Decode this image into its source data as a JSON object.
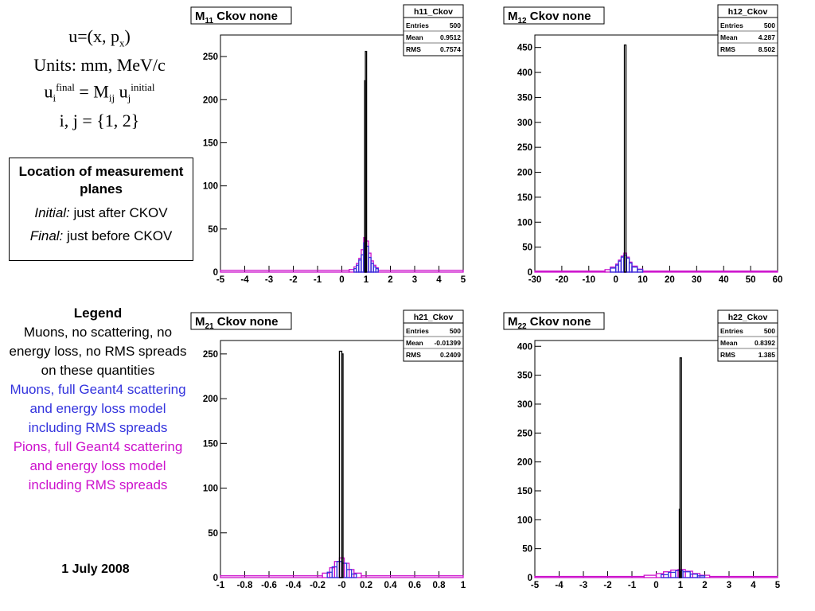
{
  "formula": {
    "line1": "u=(x, p",
    "line1_sub": "x",
    "line1_end": ")",
    "line2": "Units: mm, MeV/c",
    "line3_a": "u",
    "line3_a_sup": "final",
    "line3_a_sub": "i",
    "line3_b": " = M",
    "line3_b_sub": "ij",
    "line3_c": " u",
    "line3_c_sup": "initial",
    "line3_c_sub": "j",
    "line4": "i, j = {1, 2}"
  },
  "location": {
    "title": "Location of measurement planes",
    "initial_label": "Initial:",
    "initial_text": " just after CKOV",
    "final_label": "Final:",
    "final_text": " just before CKOV"
  },
  "legend": {
    "title": "Legend",
    "black": "Muons, no scattering, no energy loss, no RMS spreads on these quantities",
    "blue": "Muons, full Geant4 scattering and energy loss model including RMS spreads",
    "magenta": "Pions, full Geant4 scattering and energy loss model including RMS spreads",
    "colors": {
      "black": "#000000",
      "blue": "#3333dd",
      "magenta": "#cc11cc"
    }
  },
  "date": "1 July 2008",
  "chart_data": [
    {
      "type": "histogram",
      "title_main": "M",
      "title_sub": "11",
      "title_rest": " Ckov none",
      "stats": {
        "name": "h11_Ckov",
        "rows": [
          [
            "Entries",
            "500"
          ],
          [
            "Mean",
            "0.9512"
          ],
          [
            "RMS",
            "0.7574"
          ]
        ]
      },
      "xlim": [
        -5,
        5
      ],
      "ylim": [
        0,
        275
      ],
      "xticks": [
        -5,
        -4,
        -3,
        -2,
        -1,
        0,
        1,
        2,
        3,
        4,
        5
      ],
      "yticks": [
        0,
        50,
        100,
        150,
        200,
        250
      ],
      "series": [
        {
          "color": "#000000",
          "bins": [
            [
              0.94,
              0.97,
              222
            ],
            [
              0.97,
              1.02,
              256
            ]
          ]
        },
        {
          "color": "#3333dd",
          "bins": [
            [
              0.5,
              0.6,
              4
            ],
            [
              0.6,
              0.7,
              8
            ],
            [
              0.7,
              0.8,
              14
            ],
            [
              0.8,
              0.9,
              20
            ],
            [
              0.9,
              1.0,
              34
            ],
            [
              1.0,
              1.1,
              30
            ],
            [
              1.1,
              1.2,
              17
            ],
            [
              1.2,
              1.3,
              10
            ],
            [
              1.3,
              1.4,
              6
            ],
            [
              1.4,
              1.5,
              4
            ]
          ]
        },
        {
          "color": "#cc11cc",
          "bins": [
            [
              -5,
              0.3,
              2
            ],
            [
              0.3,
              0.5,
              3
            ],
            [
              0.5,
              0.6,
              6
            ],
            [
              0.6,
              0.7,
              10
            ],
            [
              0.7,
              0.8,
              16
            ],
            [
              0.8,
              0.9,
              26
            ],
            [
              0.9,
              1.0,
              40
            ],
            [
              1.0,
              1.1,
              36
            ],
            [
              1.1,
              1.2,
              22
            ],
            [
              1.2,
              1.3,
              13
            ],
            [
              1.3,
              1.4,
              8
            ],
            [
              1.4,
              1.5,
              5
            ],
            [
              1.5,
              5,
              2
            ]
          ]
        }
      ]
    },
    {
      "type": "histogram",
      "title_main": "M",
      "title_sub": "12",
      "title_rest": " Ckov none",
      "stats": {
        "name": "h12_Ckov",
        "rows": [
          [
            "Entries",
            "500"
          ],
          [
            "Mean",
            "4.287"
          ],
          [
            "RMS",
            "8.502"
          ]
        ]
      },
      "xlim": [
        -30,
        60
      ],
      "ylim": [
        0,
        475
      ],
      "xticks": [
        -30,
        -20,
        -10,
        0,
        10,
        20,
        30,
        40,
        50,
        60
      ],
      "yticks": [
        0,
        50,
        100,
        150,
        200,
        250,
        300,
        350,
        400,
        450
      ],
      "series": [
        {
          "color": "#000000",
          "bins": [
            [
              3.2,
              3.8,
              455
            ]
          ]
        },
        {
          "color": "#3333dd",
          "bins": [
            [
              -2,
              0,
              8
            ],
            [
              0,
              1,
              14
            ],
            [
              1,
              2,
              22
            ],
            [
              2,
              3,
              30
            ],
            [
              3,
              4,
              34
            ],
            [
              4,
              5,
              28
            ],
            [
              5,
              6,
              18
            ],
            [
              6,
              8,
              10
            ],
            [
              8,
              10,
              5
            ]
          ]
        },
        {
          "color": "#cc11cc",
          "bins": [
            [
              -30,
              -4,
              2
            ],
            [
              -4,
              -2,
              5
            ],
            [
              -2,
              0,
              10
            ],
            [
              0,
              1,
              16
            ],
            [
              1,
              2,
              24
            ],
            [
              2,
              3,
              32
            ],
            [
              3,
              4,
              38
            ],
            [
              4,
              5,
              30
            ],
            [
              5,
              6,
              20
            ],
            [
              6,
              8,
              12
            ],
            [
              8,
              10,
              6
            ],
            [
              10,
              60,
              2
            ]
          ]
        }
      ]
    },
    {
      "type": "histogram",
      "title_main": "M",
      "title_sub": "21",
      "title_rest": " Ckov none",
      "stats": {
        "name": "h21_Ckov",
        "rows": [
          [
            "Entries",
            "500"
          ],
          [
            "Mean",
            "-0.01399"
          ],
          [
            "RMS",
            "0.2409"
          ]
        ]
      },
      "xlim": [
        -1,
        1
      ],
      "ylim": [
        0,
        265
      ],
      "xticks": [
        -1,
        -0.8,
        -0.6,
        -0.4,
        -0.2,
        0,
        0.2,
        0.4,
        0.6,
        0.8,
        1
      ],
      "xtick_labels": [
        "-1",
        "-0.8",
        "-0.6",
        "-0.4",
        "-0.2",
        "-0",
        "0.2",
        "0.4",
        "0.6",
        "0.8",
        "1"
      ],
      "yticks": [
        0,
        50,
        100,
        150,
        200,
        250
      ],
      "series": [
        {
          "color": "#000000",
          "bins": [
            [
              -0.02,
              0.0,
              253
            ],
            [
              0.0,
              0.01,
              250
            ]
          ]
        },
        {
          "color": "#3333dd",
          "bins": [
            [
              -0.12,
              -0.08,
              6
            ],
            [
              -0.08,
              -0.04,
              12
            ],
            [
              -0.04,
              0.0,
              18
            ],
            [
              0.0,
              0.04,
              16
            ],
            [
              0.04,
              0.08,
              9
            ],
            [
              0.08,
              0.12,
              4
            ]
          ]
        },
        {
          "color": "#cc11cc",
          "bins": [
            [
              -1,
              -0.16,
              2
            ],
            [
              -0.16,
              -0.1,
              5
            ],
            [
              -0.1,
              -0.06,
              11
            ],
            [
              -0.06,
              -0.02,
              18
            ],
            [
              -0.02,
              0.02,
              22
            ],
            [
              0.02,
              0.06,
              16
            ],
            [
              0.06,
              0.1,
              9
            ],
            [
              0.1,
              0.16,
              5
            ],
            [
              0.16,
              1,
              2
            ]
          ]
        }
      ]
    },
    {
      "type": "histogram",
      "title_main": "M",
      "title_sub": "22",
      "title_rest": " Ckov none",
      "stats": {
        "name": "h22_Ckov",
        "rows": [
          [
            "Entries",
            "500"
          ],
          [
            "Mean",
            "0.8392"
          ],
          [
            "RMS",
            "1.385"
          ]
        ]
      },
      "xlim": [
        -5,
        5
      ],
      "ylim": [
        0,
        410
      ],
      "xticks": [
        -5,
        -4,
        -3,
        -2,
        -1,
        0,
        1,
        2,
        3,
        4,
        5
      ],
      "yticks": [
        0,
        50,
        100,
        150,
        200,
        250,
        300,
        350,
        400
      ],
      "series": [
        {
          "color": "#000000",
          "bins": [
            [
              0.95,
              0.98,
              118
            ],
            [
              0.98,
              1.04,
              380
            ]
          ]
        },
        {
          "color": "#3333dd",
          "bins": [
            [
              0.2,
              0.5,
              5
            ],
            [
              0.5,
              0.8,
              9
            ],
            [
              0.8,
              1.1,
              12
            ],
            [
              1.1,
              1.4,
              10
            ],
            [
              1.4,
              1.7,
              6
            ],
            [
              1.7,
              2.0,
              3
            ]
          ]
        },
        {
          "color": "#cc11cc",
          "bins": [
            [
              -5,
              -0.5,
              2
            ],
            [
              -0.5,
              0.0,
              4
            ],
            [
              0.0,
              0.3,
              7
            ],
            [
              0.3,
              0.6,
              10
            ],
            [
              0.6,
              0.9,
              13
            ],
            [
              0.9,
              1.2,
              14
            ],
            [
              1.2,
              1.5,
              11
            ],
            [
              1.5,
              1.8,
              7
            ],
            [
              1.8,
              2.2,
              4
            ],
            [
              2.2,
              5,
              2
            ]
          ]
        }
      ]
    }
  ]
}
